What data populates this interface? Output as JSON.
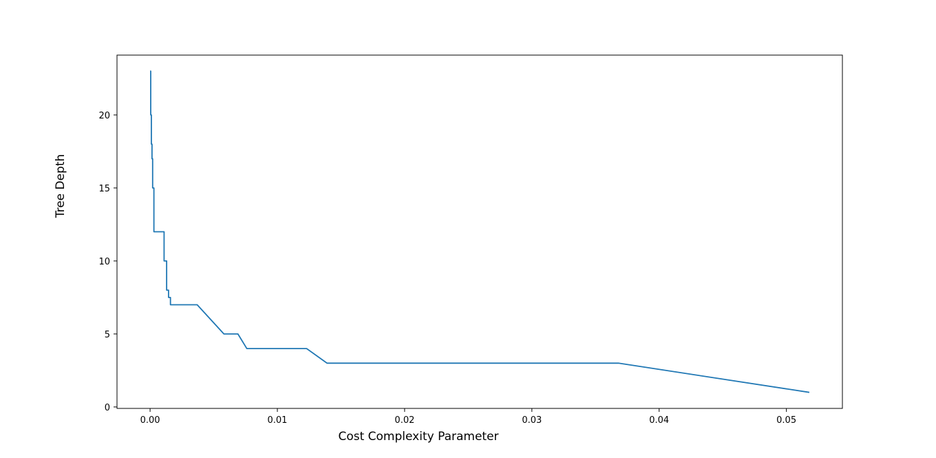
{
  "chart_data": {
    "type": "line",
    "title": "",
    "xlabel": "Cost Complexity Parameter",
    "ylabel": "Tree Depth",
    "xlim": [
      -0.0026,
      0.0544
    ],
    "ylim": [
      -0.1,
      24.1
    ],
    "grid": false,
    "line_color": "#1f77b4",
    "x_ticks": [
      0.0,
      0.01,
      0.02,
      0.03,
      0.04,
      0.05
    ],
    "x_tick_labels": [
      "0.00",
      "0.01",
      "0.02",
      "0.03",
      "0.04",
      "0.05"
    ],
    "y_ticks": [
      0,
      5,
      10,
      15,
      20
    ],
    "y_tick_labels": [
      "0",
      "5",
      "10",
      "15",
      "20"
    ],
    "series": [
      {
        "x": [
          0.0,
          5e-05,
          5e-05,
          0.0001,
          0.0001,
          0.00015,
          0.00015,
          0.0002,
          0.0002,
          0.0003,
          0.0003,
          0.0011,
          0.0011,
          0.0013,
          0.0013,
          0.00145,
          0.00145,
          0.0016,
          0.0016,
          0.0037,
          0.0058,
          0.0069,
          0.0076,
          0.0123,
          0.0139,
          0.0368,
          0.0518
        ],
        "y": [
          23,
          23,
          20,
          20,
          18,
          18,
          17,
          17,
          15,
          15,
          12,
          12,
          10,
          10,
          8,
          8,
          7.5,
          7.5,
          7,
          7,
          5,
          5,
          4,
          4,
          3,
          3,
          1
        ]
      }
    ]
  }
}
